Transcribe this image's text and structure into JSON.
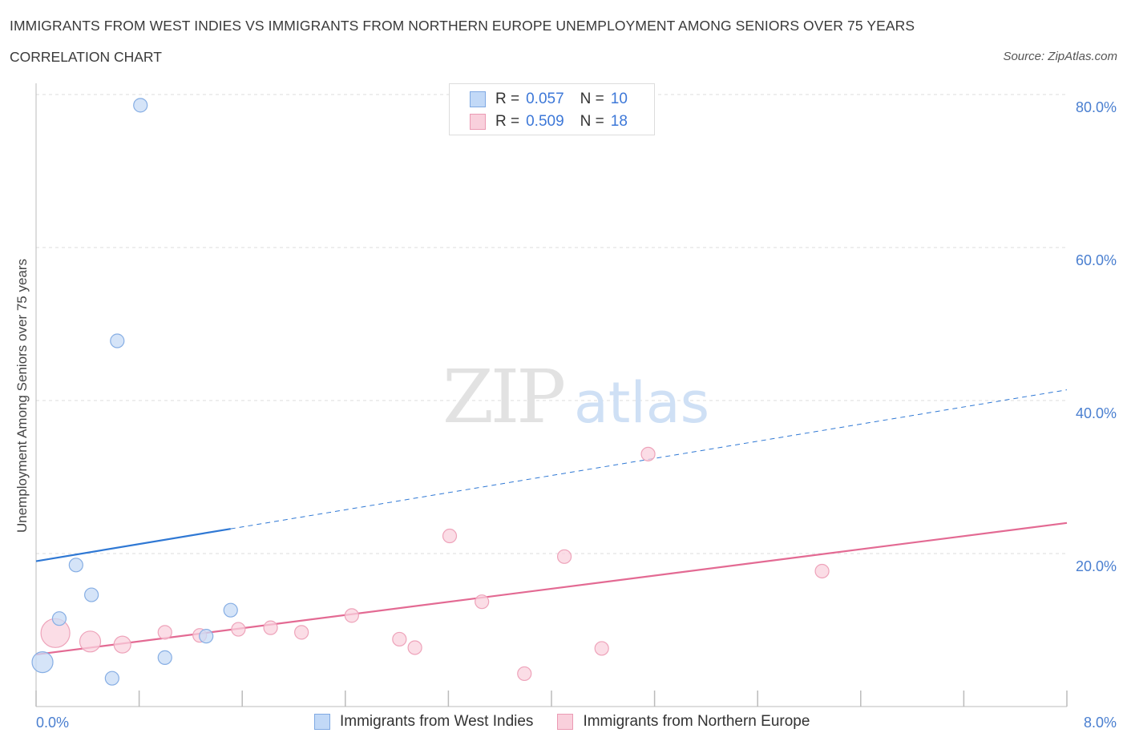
{
  "title": "IMMIGRANTS FROM WEST INDIES VS IMMIGRANTS FROM NORTHERN EUROPE UNEMPLOYMENT AMONG SENIORS OVER 75 YEARS",
  "subtitle": "CORRELATION CHART",
  "source": "Source: ZipAtlas.com",
  "watermark": {
    "zip": "ZIP",
    "atlas": "atlas"
  },
  "legend": {
    "rows": [
      {
        "r_label": "R =",
        "r_value": "0.057",
        "n_label": "N =",
        "n_value": "10"
      },
      {
        "r_label": "R =",
        "r_value": "0.509",
        "n_label": "N =",
        "n_value": "18"
      }
    ]
  },
  "chart_data": {
    "type": "scatter",
    "ylabel": "Unemployment Among Seniors over 75 years",
    "xlim": [
      0,
      8
    ],
    "ylim": [
      0,
      80
    ],
    "x_tick_labels": [
      "0.0%",
      "8.0%"
    ],
    "y_ticks": [
      20,
      40,
      60,
      80
    ],
    "y_tick_labels": [
      "20.0%",
      "40.0%",
      "60.0%",
      "80.0%"
    ],
    "grid": true,
    "colors": {
      "west_indies": "#a9c8f0",
      "west_indies_line": "#2f78d4",
      "northern_europe": "#f6bfcf",
      "northern_europe_line": "#e36a93"
    },
    "series": [
      {
        "name": "Immigrants from West Indies",
        "points": [
          {
            "x": 0.05,
            "y": 5.8,
            "size": "large"
          },
          {
            "x": 0.18,
            "y": 11.5,
            "size": "normal"
          },
          {
            "x": 0.31,
            "y": 18.5,
            "size": "normal"
          },
          {
            "x": 0.43,
            "y": 14.6,
            "size": "normal"
          },
          {
            "x": 0.59,
            "y": 3.7,
            "size": "normal"
          },
          {
            "x": 0.63,
            "y": 47.8,
            "size": "normal"
          },
          {
            "x": 0.81,
            "y": 78.6,
            "size": "normal"
          },
          {
            "x": 1.0,
            "y": 6.4,
            "size": "normal"
          },
          {
            "x": 1.32,
            "y": 9.2,
            "size": "normal"
          },
          {
            "x": 1.51,
            "y": 12.6,
            "size": "normal"
          }
        ],
        "trend": {
          "x0": 0.0,
          "y0": 19.0,
          "x_solid_end": 1.51,
          "x1": 8.0,
          "y1": 41.4
        }
      },
      {
        "name": "Immigrants from Northern Europe",
        "points": [
          {
            "x": 0.15,
            "y": 9.6,
            "size": "xlarge"
          },
          {
            "x": 0.42,
            "y": 8.5,
            "size": "large"
          },
          {
            "x": 0.67,
            "y": 8.1,
            "size": "medium"
          },
          {
            "x": 1.0,
            "y": 9.7,
            "size": "normal"
          },
          {
            "x": 1.27,
            "y": 9.3,
            "size": "normal"
          },
          {
            "x": 1.57,
            "y": 10.1,
            "size": "normal"
          },
          {
            "x": 1.82,
            "y": 10.3,
            "size": "normal"
          },
          {
            "x": 2.06,
            "y": 9.7,
            "size": "normal"
          },
          {
            "x": 2.45,
            "y": 11.9,
            "size": "normal"
          },
          {
            "x": 2.82,
            "y": 8.8,
            "size": "normal"
          },
          {
            "x": 2.94,
            "y": 7.7,
            "size": "normal"
          },
          {
            "x": 3.21,
            "y": 22.3,
            "size": "normal"
          },
          {
            "x": 3.46,
            "y": 13.7,
            "size": "normal"
          },
          {
            "x": 3.79,
            "y": 4.3,
            "size": "normal"
          },
          {
            "x": 4.1,
            "y": 19.6,
            "size": "normal"
          },
          {
            "x": 4.39,
            "y": 7.6,
            "size": "normal"
          },
          {
            "x": 4.75,
            "y": 33.0,
            "size": "normal"
          },
          {
            "x": 6.1,
            "y": 17.7,
            "size": "normal"
          }
        ],
        "trend": {
          "x0": 0.0,
          "y0": 6.8,
          "x1": 8.0,
          "y1": 24.0
        }
      }
    ]
  }
}
